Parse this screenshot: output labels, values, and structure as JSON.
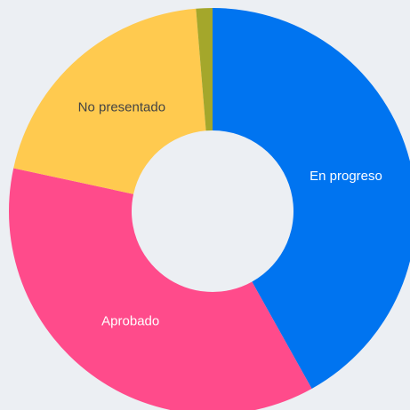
{
  "chart_data": {
    "type": "donut",
    "categories": [
      "En progreso",
      "Aprobado",
      "No presentado",
      null
    ],
    "values": [
      41.9,
      36.5,
      20.3,
      1.3
    ],
    "colors": [
      "#0074f0",
      "#ff4b8b",
      "#ffca4f",
      "#a4a72b"
    ]
  }
}
